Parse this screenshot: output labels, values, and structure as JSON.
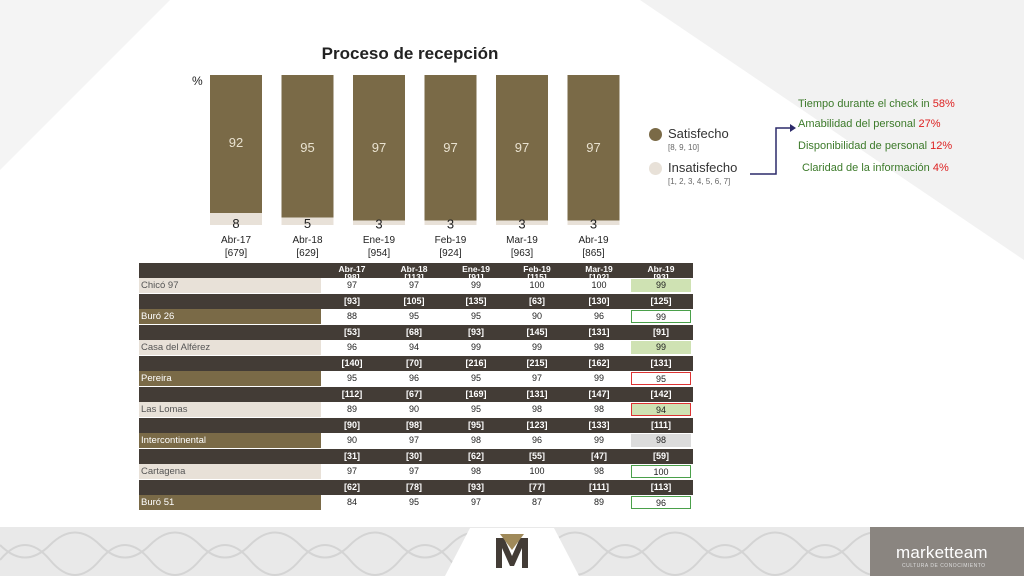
{
  "chart_data": {
    "type": "bar",
    "title": "Proceso de recepción",
    "ylabel": "%",
    "stacked": true,
    "categories": [
      "Abr-17",
      "Abr-18",
      "Ene-19",
      "Feb-19",
      "Mar-19",
      "Abr-19"
    ],
    "counts": [
      "[679]",
      "[629]",
      "[954]",
      "[924]",
      "[963]",
      "[865]"
    ],
    "series": [
      {
        "name": "Satisfecho",
        "values": [
          92,
          95,
          97,
          97,
          97,
          97
        ],
        "color": "#7a6a47"
      },
      {
        "name": "Insatisfecho",
        "values": [
          8,
          5,
          3,
          3,
          3,
          3
        ],
        "color": "#e8e1d8"
      }
    ],
    "ylim": [
      0,
      100
    ],
    "grid": false,
    "legend": "right"
  },
  "legend": {
    "satisfied": {
      "label": "Satisfecho",
      "range": "[8, 9, 10]"
    },
    "unsatisfied": {
      "label": "Insatisfecho",
      "range": "[1, 2, 3, 4, 5, 6, 7]"
    }
  },
  "attributes": [
    {
      "text": "Tiempo durante el check in ",
      "pct": "58%"
    },
    {
      "text": "Amabilidad del personal ",
      "pct": "27%"
    },
    {
      "text": "Disponibilidad de personal ",
      "pct": "12%"
    },
    {
      "text": "Claridad de la información ",
      "pct": "4%"
    }
  ],
  "table": {
    "columns": [
      {
        "label": "Abr-17",
        "count": "[98]"
      },
      {
        "label": "Abr-18",
        "count": "[113]"
      },
      {
        "label": "Ene-19",
        "count": "[91]"
      },
      {
        "label": "Feb-19",
        "count": "[115]"
      },
      {
        "label": "Mar-19",
        "count": "[102]"
      },
      {
        "label": "Abr-19",
        "count": "[93]"
      }
    ],
    "rows": [
      {
        "site": "Chicó 97",
        "counts": null,
        "values": [
          "97",
          "97",
          "99",
          "100",
          "100",
          "99"
        ],
        "highlight": "green-fill",
        "style": "light"
      },
      {
        "site": "Buró 26",
        "counts": [
          "[93]",
          "[105]",
          "[135]",
          "[63]",
          "[130]",
          "[125]"
        ],
        "values": [
          "88",
          "95",
          "95",
          "90",
          "96",
          "99"
        ],
        "highlight": "green-border",
        "style": "gold"
      },
      {
        "site": "Casa del Alférez",
        "counts": [
          "[53]",
          "[68]",
          "[93]",
          "[145]",
          "[131]",
          "[91]"
        ],
        "values": [
          "96",
          "94",
          "99",
          "99",
          "98",
          "99"
        ],
        "highlight": "green-fill",
        "style": "light"
      },
      {
        "site": "Pereira",
        "counts": [
          "[140]",
          "[70]",
          "[216]",
          "[215]",
          "[162]",
          "[131]"
        ],
        "values": [
          "95",
          "96",
          "95",
          "97",
          "99",
          "95"
        ],
        "highlight": "red-border",
        "style": "gold"
      },
      {
        "site": "Las Lomas",
        "counts": [
          "[112]",
          "[67]",
          "[169]",
          "[131]",
          "[147]",
          "[142]"
        ],
        "values": [
          "89",
          "90",
          "95",
          "98",
          "98",
          "94"
        ],
        "highlight": "red-border-green",
        "style": "light"
      },
      {
        "site": "Intercontinental",
        "counts": [
          "[90]",
          "[98]",
          "[95]",
          "[123]",
          "[133]",
          "[111]"
        ],
        "values": [
          "90",
          "97",
          "98",
          "96",
          "99",
          "98"
        ],
        "highlight": "gray-fill",
        "style": "gold"
      },
      {
        "site": "Cartagena",
        "counts": [
          "[31]",
          "[30]",
          "[62]",
          "[55]",
          "[47]",
          "[59]"
        ],
        "values": [
          "97",
          "97",
          "98",
          "100",
          "98",
          "100"
        ],
        "highlight": "green-border",
        "style": "light"
      },
      {
        "site": "Buró 51",
        "counts": [
          "[62]",
          "[78]",
          "[93]",
          "[77]",
          "[111]",
          "[113]"
        ],
        "values": [
          "84",
          "95",
          "97",
          "87",
          "89",
          "96"
        ],
        "highlight": "green-border",
        "style": "gold"
      }
    ]
  },
  "brand": {
    "name": "marketteam",
    "tagline": "CULTURA DE CONOCIMIENTO"
  },
  "colors": {
    "gold": "#7a6a47",
    "light": "#e8e1d8",
    "dark": "#433c36",
    "green": "#3c7a2a",
    "red": "#d22"
  }
}
